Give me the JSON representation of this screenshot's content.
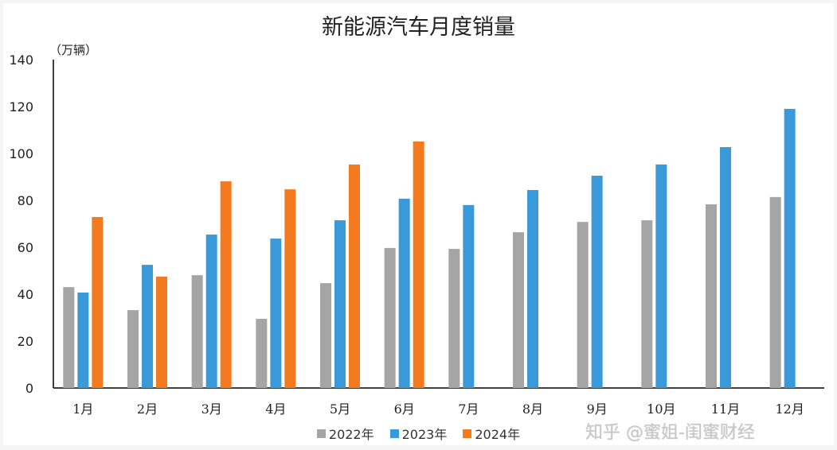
{
  "chart_data": {
    "type": "bar",
    "title": "新能源汽车月度销量",
    "ylabel": "（万辆）",
    "xlabel": "",
    "ylim": [
      0,
      140
    ],
    "yticks": [
      0,
      20,
      40,
      60,
      80,
      100,
      120,
      140
    ],
    "grid": false,
    "legend": "bottom",
    "categories": [
      "1月",
      "2月",
      "3月",
      "4月",
      "5月",
      "6月",
      "7月",
      "8月",
      "9月",
      "10月",
      "11月",
      "12月"
    ],
    "series": [
      {
        "name": "2022年",
        "color": "#a5a5a5",
        "values": [
          43.0,
          33.2,
          48.1,
          29.5,
          44.7,
          59.7,
          59.3,
          66.4,
          70.8,
          71.5,
          78.3,
          81.4
        ]
      },
      {
        "name": "2023年",
        "color": "#3a9ad9",
        "values": [
          40.7,
          52.5,
          65.4,
          63.7,
          71.5,
          80.7,
          78.0,
          84.4,
          90.5,
          95.3,
          102.7,
          119.0
        ]
      },
      {
        "name": "2024年",
        "color": "#f47a20",
        "values": [
          72.9,
          47.5,
          88.1,
          84.7,
          95.3,
          105.1,
          null,
          null,
          null,
          null,
          null,
          null
        ]
      }
    ]
  },
  "watermark": "知乎 @蜜姐-闺蜜财经"
}
